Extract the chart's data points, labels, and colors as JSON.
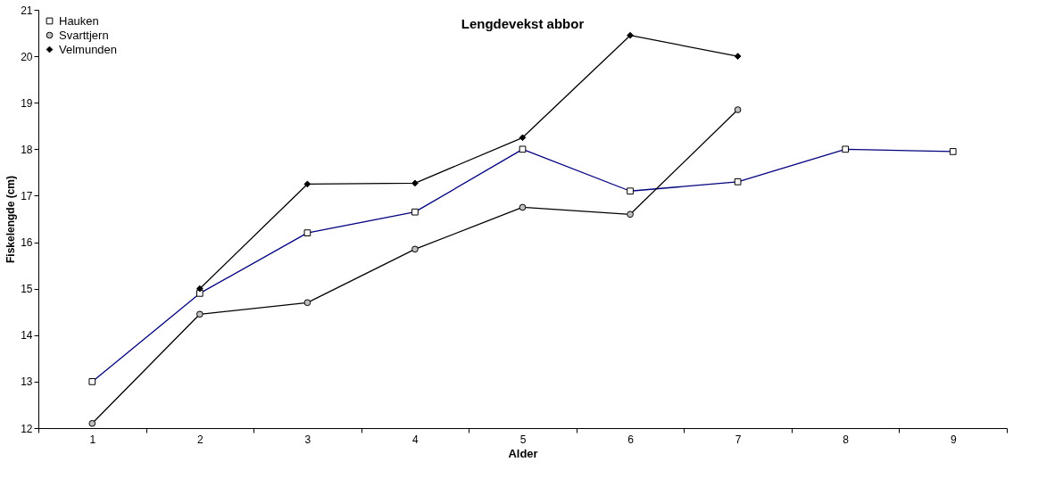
{
  "chart_data": {
    "type": "line",
    "title": "Lengdevekst abbor",
    "xlabel": "Alder",
    "ylabel": "Fiskelengde (cm)",
    "categories": [
      "1",
      "2",
      "3",
      "4",
      "5",
      "6",
      "7",
      "8",
      "9"
    ],
    "ylim": [
      12,
      21
    ],
    "yticks": [
      12,
      13,
      14,
      15,
      16,
      17,
      18,
      19,
      20,
      21
    ],
    "grid": false,
    "legend": "top left",
    "line_style": "solid",
    "series": [
      {
        "name": "Hauken",
        "color": "#000080",
        "marker": "square",
        "values": [
          13.0,
          14.9,
          16.2,
          16.65,
          18.0,
          17.1,
          17.3,
          18.0,
          17.95
        ]
      },
      {
        "name": "Svarttjern",
        "color": "#000000",
        "marker": "circle",
        "values": [
          12.1,
          14.45,
          14.7,
          15.85,
          16.75,
          16.6,
          18.85,
          null,
          null
        ]
      },
      {
        "name": "Velmunden",
        "color": "#000000",
        "marker": "diamond",
        "values": [
          null,
          15.0,
          17.25,
          17.27,
          18.25,
          20.45,
          20.0,
          null,
          null
        ]
      }
    ]
  }
}
